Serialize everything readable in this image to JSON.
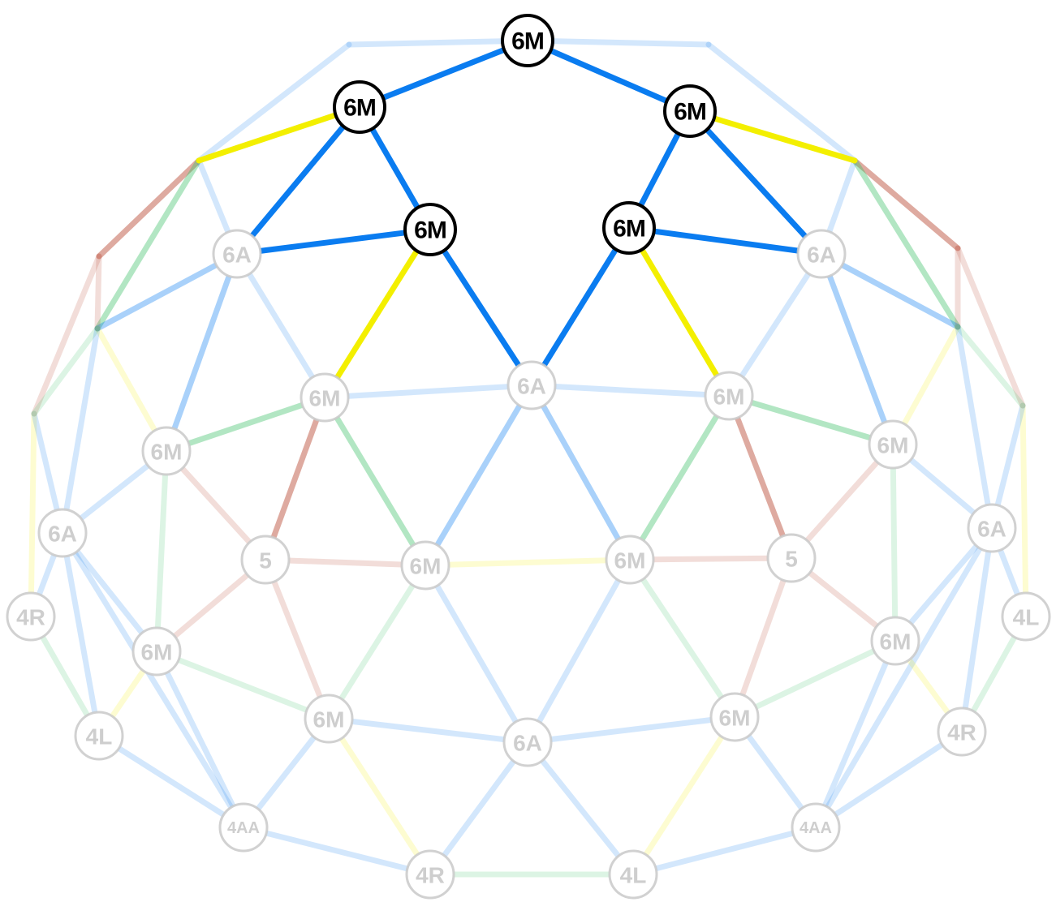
{
  "colors": {
    "blue": "#0a7cf0",
    "yellow": "#f3ef00",
    "green": "#3fc06a",
    "red": "#b5422c",
    "hub_active": "#000000",
    "hub_faded": "#c9c9c9"
  },
  "hubs": [
    {
      "id": "top",
      "label": "6M",
      "active": true
    },
    {
      "id": "tl",
      "label": "6M",
      "active": true
    },
    {
      "id": "tr",
      "label": "6M",
      "active": true
    },
    {
      "id": "ml",
      "label": "6M",
      "active": true
    },
    {
      "id": "mr",
      "label": "6M",
      "active": true
    },
    {
      "id": "a1",
      "label": "6A",
      "active": false
    },
    {
      "id": "a2",
      "label": "6A",
      "active": false
    },
    {
      "id": "c",
      "label": "6A",
      "active": false
    },
    {
      "id": "e1",
      "label": "6M",
      "active": false
    },
    {
      "id": "e2",
      "label": "6M",
      "active": false
    },
    {
      "id": "f1",
      "label": "6M",
      "active": false
    },
    {
      "id": "f2",
      "label": "6M",
      "active": false
    },
    {
      "id": "g1",
      "label": "6A",
      "active": false
    },
    {
      "id": "g2",
      "label": "6A",
      "active": false
    },
    {
      "id": "h1",
      "label": "5",
      "active": false
    },
    {
      "id": "h2",
      "label": "5",
      "active": false
    },
    {
      "id": "i1",
      "label": "6M",
      "active": false
    },
    {
      "id": "i2",
      "label": "6M",
      "active": false
    },
    {
      "id": "j1",
      "label": "4R",
      "active": false
    },
    {
      "id": "j2",
      "label": "4L",
      "active": false
    },
    {
      "id": "k1",
      "label": "6M",
      "active": false
    },
    {
      "id": "k2",
      "label": "6M",
      "active": false
    },
    {
      "id": "l1",
      "label": "6M",
      "active": false
    },
    {
      "id": "l2",
      "label": "6M",
      "active": false
    },
    {
      "id": "m",
      "label": "6A",
      "active": false
    },
    {
      "id": "n1",
      "label": "4L",
      "active": false
    },
    {
      "id": "n2",
      "label": "4R",
      "active": false
    },
    {
      "id": "o1",
      "label": "4AA",
      "active": false
    },
    {
      "id": "o2",
      "label": "4AA",
      "active": false
    },
    {
      "id": "p1",
      "label": "4R",
      "active": false
    },
    {
      "id": "p2",
      "label": "4L",
      "active": false
    }
  ],
  "struts": [
    {
      "from": "top",
      "to": "tl",
      "color": "blue",
      "active": true
    },
    {
      "from": "top",
      "to": "tr",
      "color": "blue",
      "active": true
    },
    {
      "from": "tl",
      "to": "ml",
      "color": "blue",
      "active": true
    },
    {
      "from": "tr",
      "to": "mr",
      "color": "blue",
      "active": true
    },
    {
      "from": "ml",
      "to": "c",
      "color": "blue",
      "active": true
    },
    {
      "from": "mr",
      "to": "c",
      "color": "blue",
      "active": true
    },
    {
      "from": "tl",
      "to": "a1",
      "color": "blue",
      "active": true
    },
    {
      "from": "tr",
      "to": "a2",
      "color": "blue",
      "active": true
    },
    {
      "from": "ml",
      "to": "a1",
      "color": "blue",
      "active": true
    },
    {
      "from": "mr",
      "to": "a2",
      "color": "blue",
      "active": true
    },
    {
      "from": "tl",
      "to": "p_tl",
      "color": "yellow",
      "active": true
    },
    {
      "from": "tr",
      "to": "p_tr",
      "color": "yellow",
      "active": true
    },
    {
      "from": "ml",
      "to": "e1",
      "color": "yellow",
      "active": true
    },
    {
      "from": "mr",
      "to": "e2",
      "color": "yellow",
      "active": true
    },
    {
      "from": "p_tl",
      "to": "p_l1",
      "color": "red",
      "active": false
    },
    {
      "from": "p_tr",
      "to": "p_r1",
      "color": "red",
      "active": false
    },
    {
      "from": "p_tl",
      "to": "p_l2",
      "color": "green",
      "active": false
    },
    {
      "from": "p_tr",
      "to": "p_r2",
      "color": "green",
      "active": false
    },
    {
      "from": "a1",
      "to": "p_l2",
      "color": "blue",
      "active": false
    },
    {
      "from": "a2",
      "to": "p_r2",
      "color": "blue",
      "active": false
    },
    {
      "from": "a1",
      "to": "f1",
      "color": "blue",
      "active": false
    },
    {
      "from": "a2",
      "to": "f2",
      "color": "blue",
      "active": false
    },
    {
      "from": "f1",
      "to": "e1",
      "color": "green",
      "active": false
    },
    {
      "from": "f2",
      "to": "e2",
      "color": "green",
      "active": false
    },
    {
      "from": "e1",
      "to": "h1",
      "color": "red",
      "active": false
    },
    {
      "from": "e2",
      "to": "h2",
      "color": "red",
      "active": false
    },
    {
      "from": "e1",
      "to": "i1",
      "color": "green",
      "active": false
    },
    {
      "from": "e2",
      "to": "i2",
      "color": "green",
      "active": false
    },
    {
      "from": "c",
      "to": "i1",
      "color": "blue",
      "active": false
    },
    {
      "from": "c",
      "to": "i2",
      "color": "blue",
      "active": false
    },
    {
      "from": "e1",
      "to": "c",
      "color": "blue",
      "active": false
    },
    {
      "from": "e2",
      "to": "c",
      "color": "blue",
      "active": false
    },
    {
      "from": "top",
      "to": "pt_l",
      "color": "blue",
      "active": false
    },
    {
      "from": "top",
      "to": "pt_r",
      "color": "blue",
      "active": false
    },
    {
      "from": "pt_l",
      "to": "p_tl",
      "color": "blue",
      "active": false
    },
    {
      "from": "pt_r",
      "to": "p_tr",
      "color": "blue",
      "active": false
    },
    {
      "from": "p_tl",
      "to": "a1",
      "color": "blue",
      "active": false
    },
    {
      "from": "p_tr",
      "to": "a2",
      "color": "blue",
      "active": false
    },
    {
      "from": "a1",
      "to": "e1",
      "color": "blue",
      "active": false
    },
    {
      "from": "a2",
      "to": "e2",
      "color": "blue",
      "active": false
    },
    {
      "from": "p_l1",
      "to": "p_l2",
      "color": "red",
      "active": false
    },
    {
      "from": "p_r1",
      "to": "p_r2",
      "color": "red",
      "active": false
    },
    {
      "from": "p_l1",
      "to": "p_l3",
      "color": "red",
      "active": false
    },
    {
      "from": "p_r1",
      "to": "p_r3",
      "color": "red",
      "active": false
    },
    {
      "from": "p_l2",
      "to": "p_l3",
      "color": "green",
      "active": false
    },
    {
      "from": "p_r2",
      "to": "p_r3",
      "color": "green",
      "active": false
    },
    {
      "from": "p_l2",
      "to": "f1",
      "color": "yellow",
      "active": false
    },
    {
      "from": "p_r2",
      "to": "f2",
      "color": "yellow",
      "active": false
    },
    {
      "from": "p_l2",
      "to": "g1",
      "color": "blue",
      "active": false
    },
    {
      "from": "p_r2",
      "to": "g2",
      "color": "blue",
      "active": false
    },
    {
      "from": "p_l3",
      "to": "j1",
      "color": "yellow",
      "active": false
    },
    {
      "from": "p_r3",
      "to": "j2",
      "color": "yellow",
      "active": false
    },
    {
      "from": "p_l3",
      "to": "g1",
      "color": "blue",
      "active": false
    },
    {
      "from": "p_r3",
      "to": "g2",
      "color": "blue",
      "active": false
    },
    {
      "from": "f1",
      "to": "g1",
      "color": "blue",
      "active": false
    },
    {
      "from": "f2",
      "to": "g2",
      "color": "blue",
      "active": false
    },
    {
      "from": "f1",
      "to": "h1",
      "color": "red",
      "active": false
    },
    {
      "from": "f2",
      "to": "h2",
      "color": "red",
      "active": false
    },
    {
      "from": "f1",
      "to": "k1",
      "color": "green",
      "active": false
    },
    {
      "from": "f2",
      "to": "k2",
      "color": "green",
      "active": false
    },
    {
      "from": "g1",
      "to": "k1",
      "color": "blue",
      "active": false
    },
    {
      "from": "g2",
      "to": "k2",
      "color": "blue",
      "active": false
    },
    {
      "from": "g1",
      "to": "j1",
      "color": "blue",
      "active": false
    },
    {
      "from": "g2",
      "to": "j2",
      "color": "blue",
      "active": false
    },
    {
      "from": "g1",
      "to": "n1",
      "color": "blue",
      "active": false
    },
    {
      "from": "g2",
      "to": "n2",
      "color": "blue",
      "active": false
    },
    {
      "from": "g1",
      "to": "o1",
      "color": "blue",
      "active": false
    },
    {
      "from": "g2",
      "to": "o2",
      "color": "blue",
      "active": false
    },
    {
      "from": "j1",
      "to": "n1",
      "color": "green",
      "active": false
    },
    {
      "from": "j2",
      "to": "n2",
      "color": "green",
      "active": false
    },
    {
      "from": "h1",
      "to": "i1",
      "color": "red",
      "active": false
    },
    {
      "from": "h2",
      "to": "i2",
      "color": "red",
      "active": false
    },
    {
      "from": "h1",
      "to": "k1",
      "color": "red",
      "active": false
    },
    {
      "from": "h2",
      "to": "k2",
      "color": "red",
      "active": false
    },
    {
      "from": "h1",
      "to": "l1",
      "color": "red",
      "active": false
    },
    {
      "from": "h2",
      "to": "l2",
      "color": "red",
      "active": false
    },
    {
      "from": "i1",
      "to": "i2",
      "color": "yellow",
      "active": false
    },
    {
      "from": "i1",
      "to": "l1",
      "color": "green",
      "active": false
    },
    {
      "from": "i2",
      "to": "l2",
      "color": "green",
      "active": false
    },
    {
      "from": "i1",
      "to": "m",
      "color": "blue",
      "active": false
    },
    {
      "from": "i2",
      "to": "m",
      "color": "blue",
      "active": false
    },
    {
      "from": "k1",
      "to": "l1",
      "color": "green",
      "active": false
    },
    {
      "from": "k2",
      "to": "l2",
      "color": "green",
      "active": false
    },
    {
      "from": "k1",
      "to": "n1",
      "color": "yellow",
      "active": false
    },
    {
      "from": "k2",
      "to": "n2",
      "color": "yellow",
      "active": false
    },
    {
      "from": "k1",
      "to": "o1",
      "color": "blue",
      "active": false
    },
    {
      "from": "k2",
      "to": "o2",
      "color": "blue",
      "active": false
    },
    {
      "from": "l1",
      "to": "m",
      "color": "blue",
      "active": false
    },
    {
      "from": "l2",
      "to": "m",
      "color": "blue",
      "active": false
    },
    {
      "from": "l1",
      "to": "o1",
      "color": "blue",
      "active": false
    },
    {
      "from": "l2",
      "to": "o2",
      "color": "blue",
      "active": false
    },
    {
      "from": "l1",
      "to": "p1",
      "color": "yellow",
      "active": false
    },
    {
      "from": "l2",
      "to": "p2",
      "color": "yellow",
      "active": false
    },
    {
      "from": "m",
      "to": "p1",
      "color": "blue",
      "active": false
    },
    {
      "from": "m",
      "to": "p2",
      "color": "blue",
      "active": false
    },
    {
      "from": "n1",
      "to": "o1",
      "color": "blue",
      "active": false
    },
    {
      "from": "n2",
      "to": "o2",
      "color": "blue",
      "active": false
    },
    {
      "from": "o1",
      "to": "p1",
      "color": "blue",
      "active": false
    },
    {
      "from": "o2",
      "to": "p2",
      "color": "blue",
      "active": false
    },
    {
      "from": "p1",
      "to": "p2",
      "color": "green",
      "active": false
    }
  ]
}
